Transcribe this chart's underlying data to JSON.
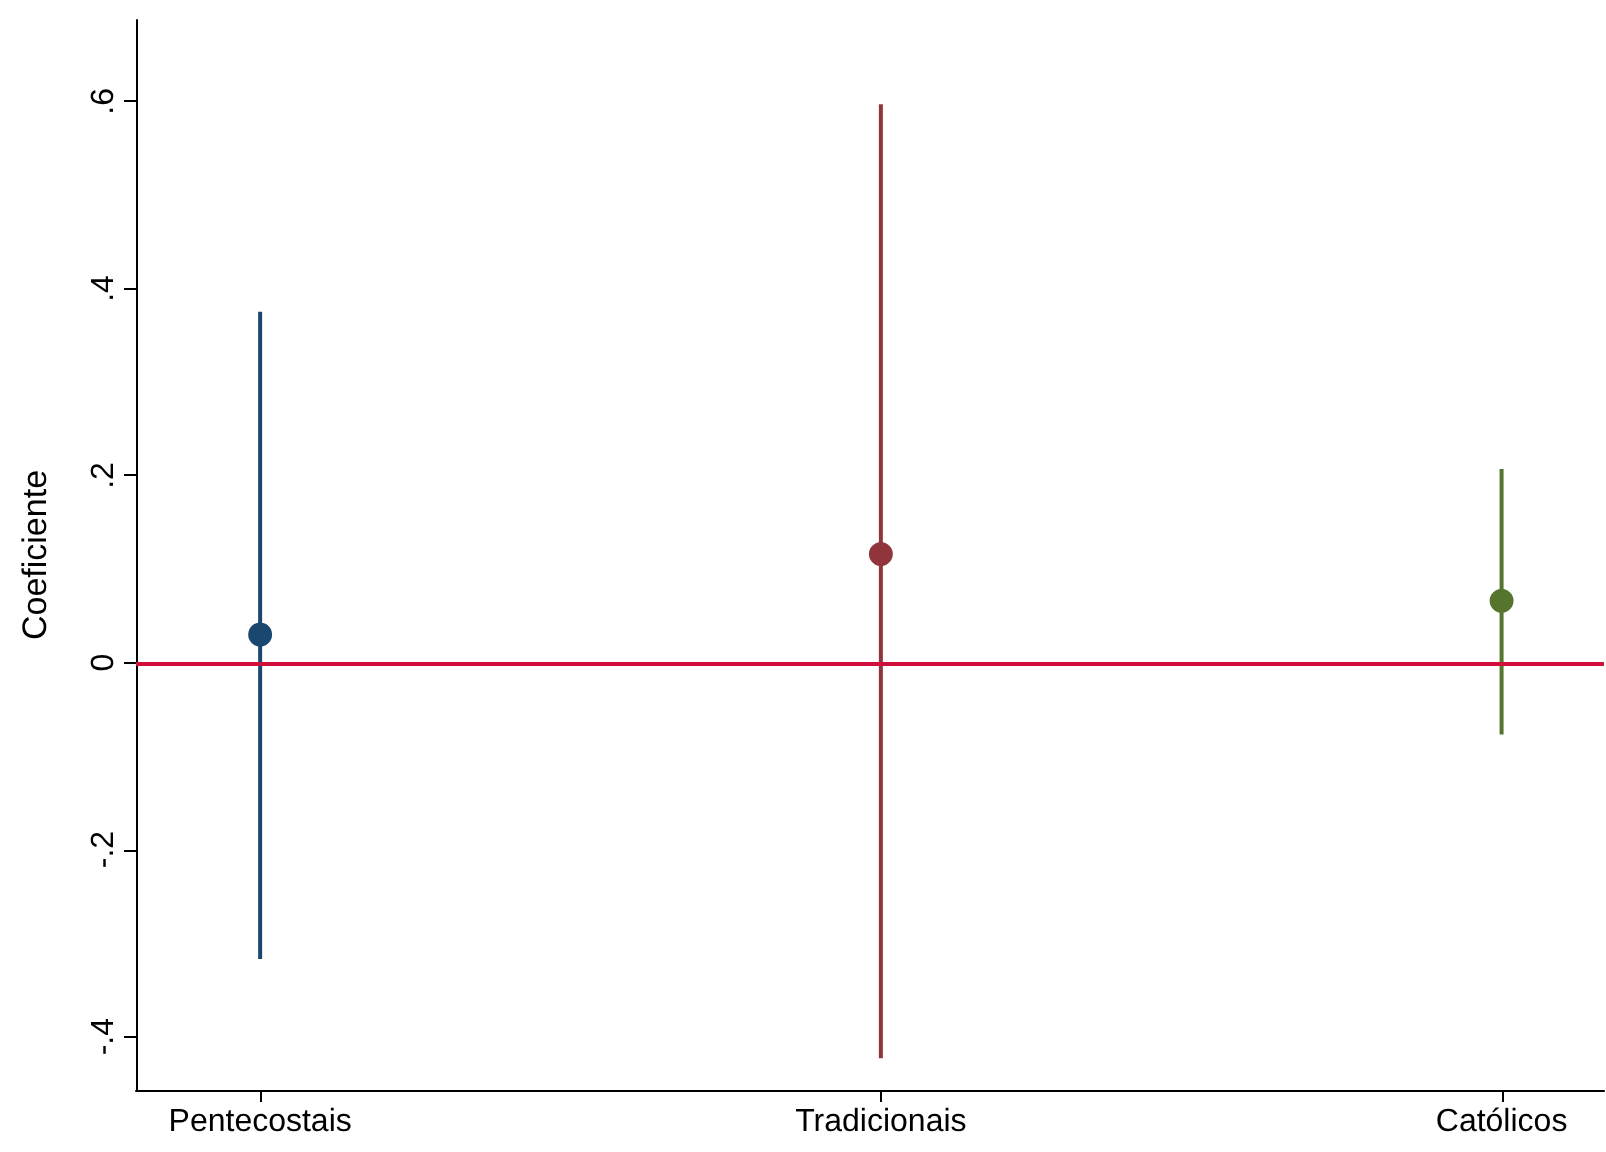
{
  "chart_data": {
    "type": "scatter",
    "ylabel": "Coeficiente",
    "categories": [
      "Pentecostais",
      "Tradicionais",
      "Católicos"
    ],
    "values": [
      0.03,
      0.116,
      0.066
    ],
    "errors": [
      [
        -0.317,
        0.375
      ],
      [
        -0.423,
        0.597
      ],
      [
        -0.077,
        0.207
      ]
    ],
    "colors": [
      "#1a476f",
      "#90353b",
      "#55752f"
    ],
    "ylim": [
      -0.457,
      0.687
    ],
    "yticks": [
      {
        "value": -0.4,
        "label": "-.4"
      },
      {
        "value": -0.2,
        "label": "-.2"
      },
      {
        "value": 0,
        "label": "0"
      },
      {
        "value": 0.2,
        "label": ".2"
      },
      {
        "value": 0.4,
        "label": ".4"
      },
      {
        "value": 0.6,
        "label": ".6"
      }
    ],
    "ref_lines": [
      {
        "axis": "y",
        "value": 0,
        "color": "#d0103a"
      }
    ],
    "marker": "circle",
    "grid": false
  }
}
